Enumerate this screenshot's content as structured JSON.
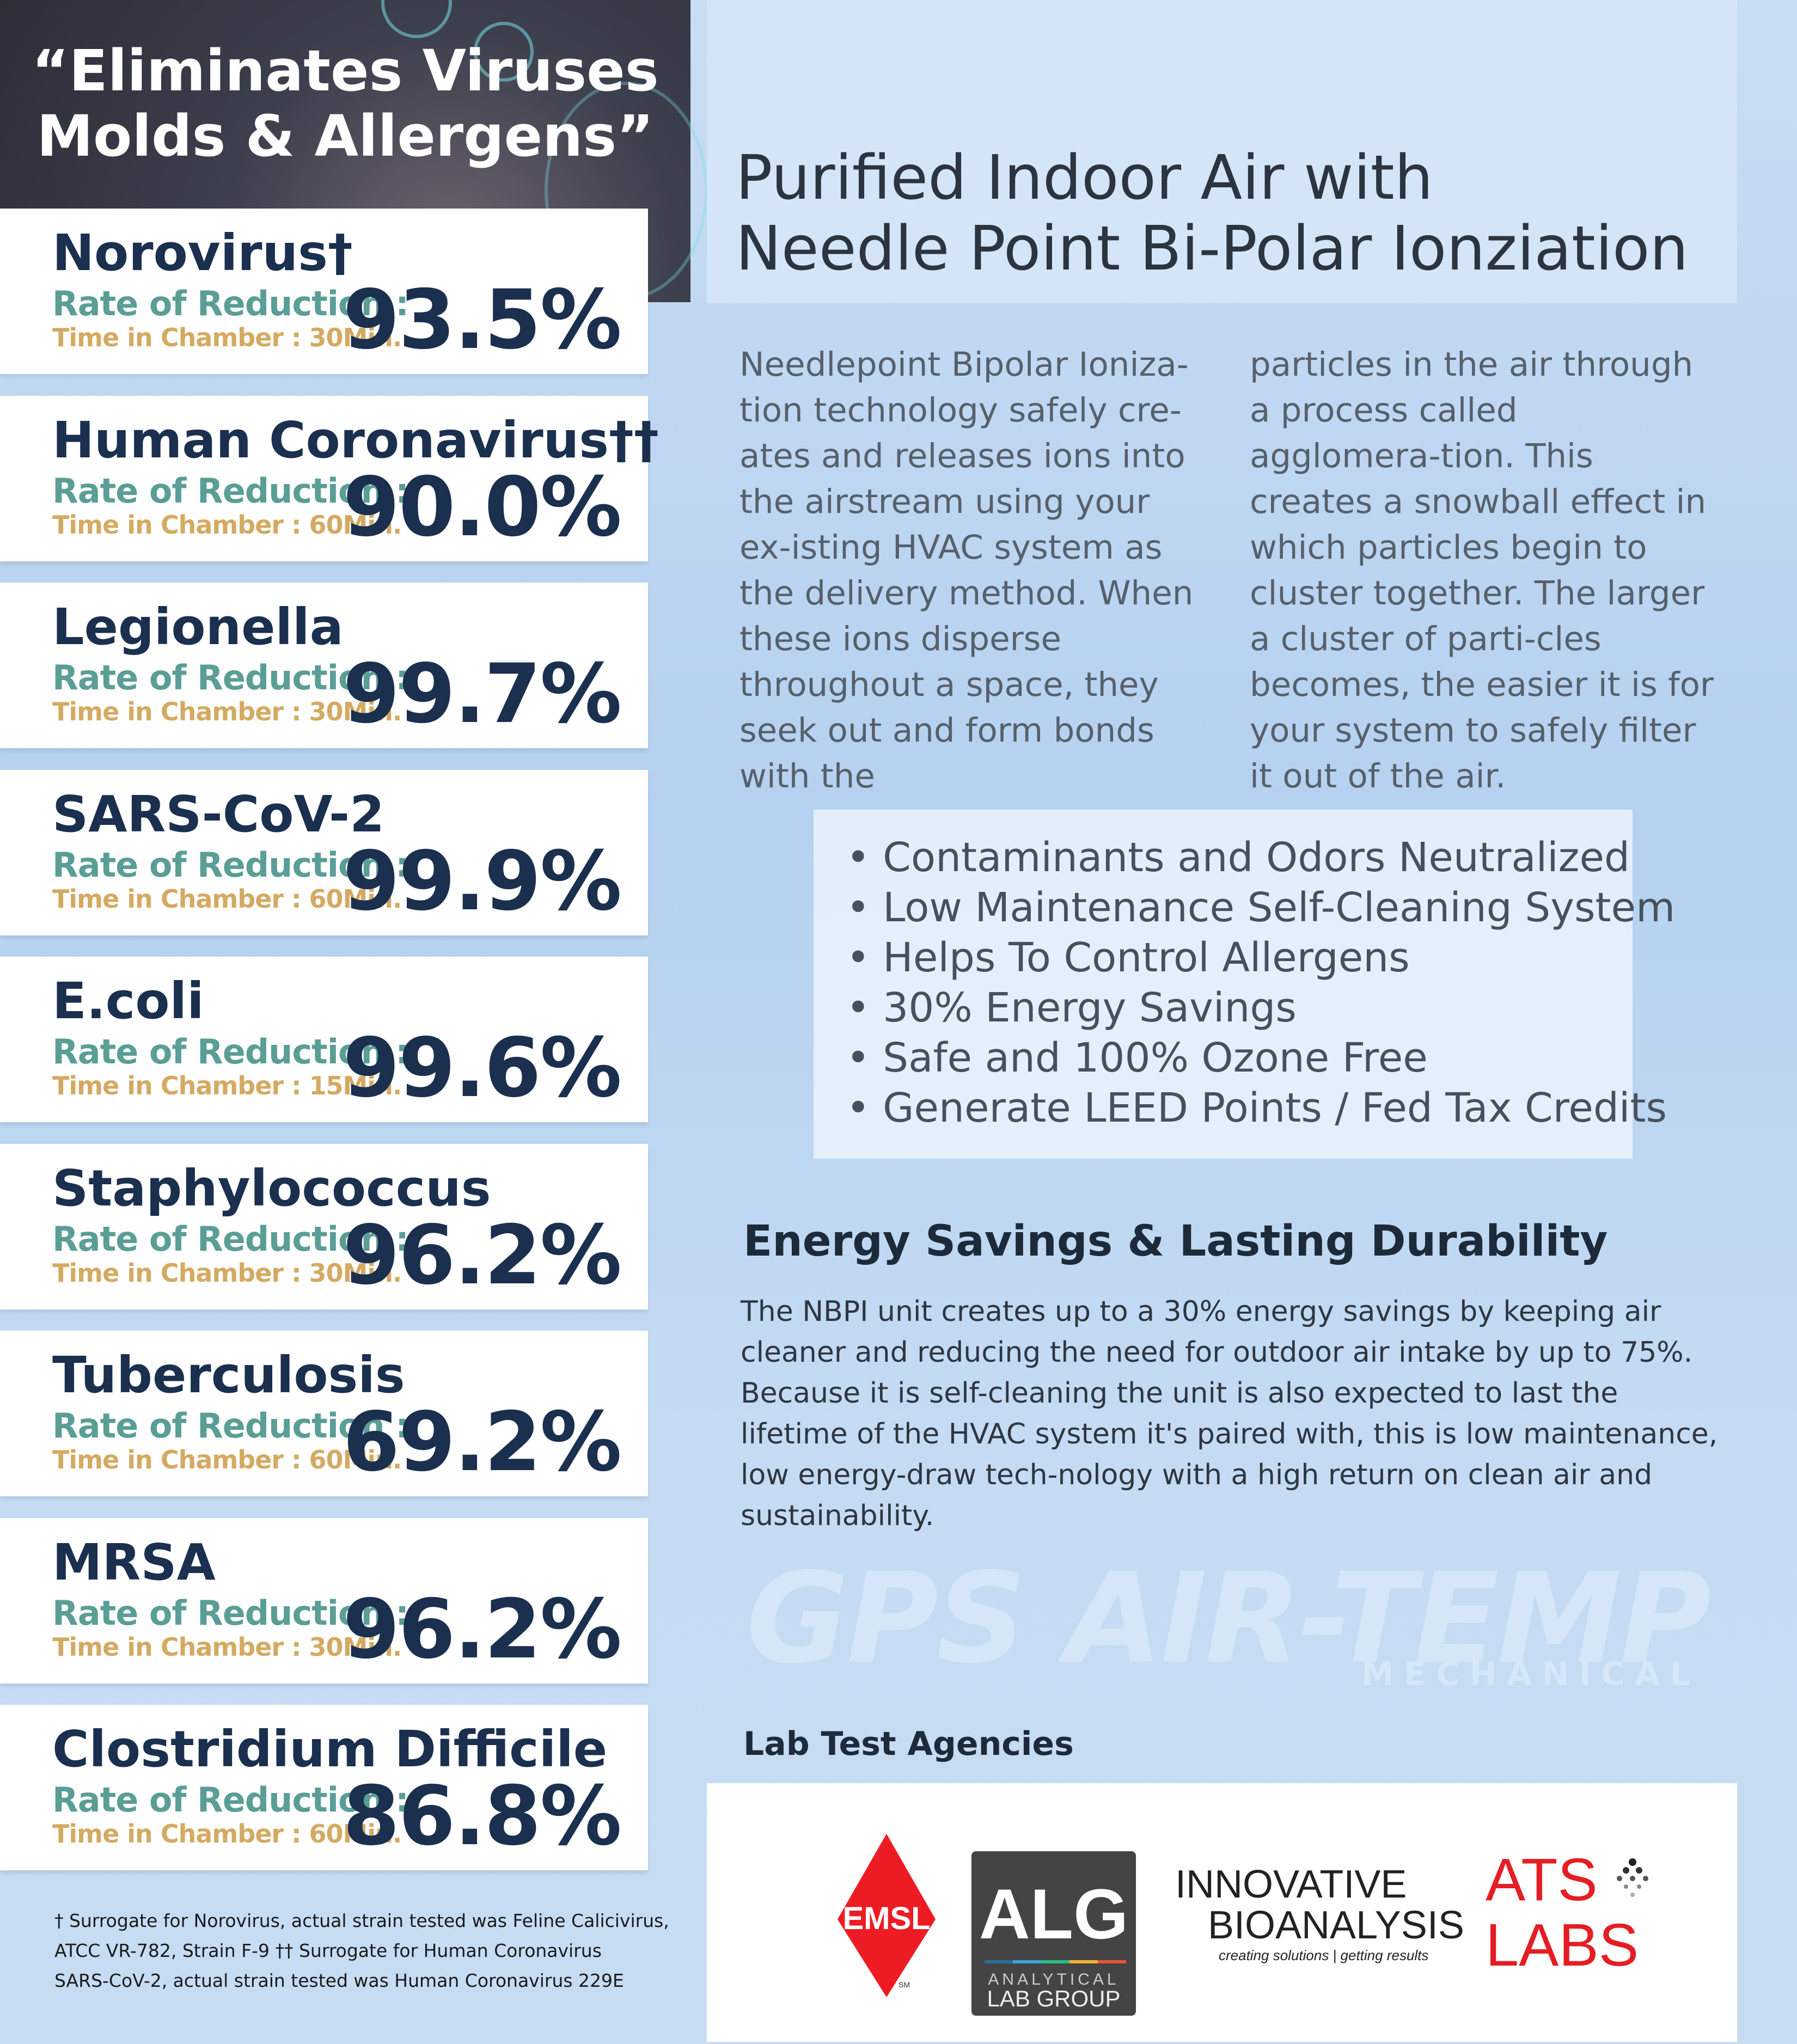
{
  "hero": {
    "line1": "“Eliminates Viruses",
    "line2": "Molds & Allergens”"
  },
  "title": {
    "line1": "Purified Indoor Air with",
    "line2": "Needle Point Bi-Polar Ionziation"
  },
  "intro": {
    "col1": "Needlepoint Bipolar Ioniza-tion technology safely cre-ates and releases ions into the airstream using your ex-isting HVAC system as the delivery method. When these ions disperse throughout a space, they seek out and form bonds with the",
    "col2": "particles in the air through a process called agglomera-tion. This creates a snowball effect in which particles begin to cluster together. The larger a cluster of parti-cles becomes, the easier it is for your system to safely filter it out of the air."
  },
  "bullets": [
    "Contaminants and Odors Neutralized",
    "Low Maintenance Self-Cleaning System",
    "Helps To Control Allergens",
    "30% Energy Savings",
    "Safe and 100% Ozone Free",
    "Generate LEED Points / Fed Tax Credits"
  ],
  "energy": {
    "heading": "Energy Savings & Lasting Durability",
    "body": "The NBPI unit creates up to a 30% energy savings by keeping air cleaner and reducing the need for outdoor air intake by up to 75%. Because it is self-cleaning the unit is also expected to last the lifetime of the HVAC system it's paired with, this is low maintenance, low energy-draw tech-nology with a high return on clean air and sustainability."
  },
  "watermark": {
    "brand1": "GPS",
    "brand2": "AIR-TEMP",
    "brand2_sub": "MECHANICAL"
  },
  "labs": {
    "heading": "Lab Test Agencies",
    "logos": {
      "emsl": "EMSL",
      "emsl_sm": "SM",
      "alg": "ALG",
      "alg_sub1": "ANALYTICAL",
      "alg_sub2": "LAB GROUP",
      "ib1": "INNOVATIVE",
      "ib2": "BIOANALYSIS",
      "ib_tag": "creating solutions | getting results",
      "ats1": "ATS",
      "ats2": "LABS"
    }
  },
  "rate_label": "Rate of Reduction :",
  "cards": [
    {
      "name": "Norovirus†",
      "time": "Time in Chamber : 30Min.",
      "value": "93.5%"
    },
    {
      "name": "Human Coronavirus††",
      "time": "Time in Chamber : 60Min.",
      "value": "90.0%"
    },
    {
      "name": "Legionella",
      "time": "Time in Chamber : 30Min.",
      "value": "99.7%"
    },
    {
      "name": "SARS-CoV-2",
      "time": "Time in Chamber : 60Min.",
      "value": "99.9%"
    },
    {
      "name": "E.coli",
      "time": "Time in Chamber : 15Min.",
      "value": "99.6%"
    },
    {
      "name": "Staphylococcus",
      "time": "Time in Chamber : 30Min.",
      "value": "96.2%"
    },
    {
      "name": "Tuberculosis",
      "time": "Time in Chamber : 60Min.",
      "value": "69.2%"
    },
    {
      "name": "MRSA",
      "time": "Time in Chamber : 30Min.",
      "value": "96.2%"
    },
    {
      "name": "Clostridium Difficile",
      "time": "Time in Chamber : 60Min.",
      "value": "86.8%"
    }
  ],
  "footnote": {
    "line1": "† Surrogate for Norovirus, actual strain tested was Feline Calicivirus,",
    "line2": "ATCC VR-782, Strain F-9 †† Surrogate for Human Coronavirus",
    "line3": "SARS-CoV-2, actual strain tested was Human Coronavirus 229E"
  },
  "colors": {
    "navy": "#1b2f4f",
    "teal": "#5a9e96",
    "gold": "#d4aa62",
    "emsl_red": "#ed1c24",
    "alg_gray": "#444444"
  }
}
